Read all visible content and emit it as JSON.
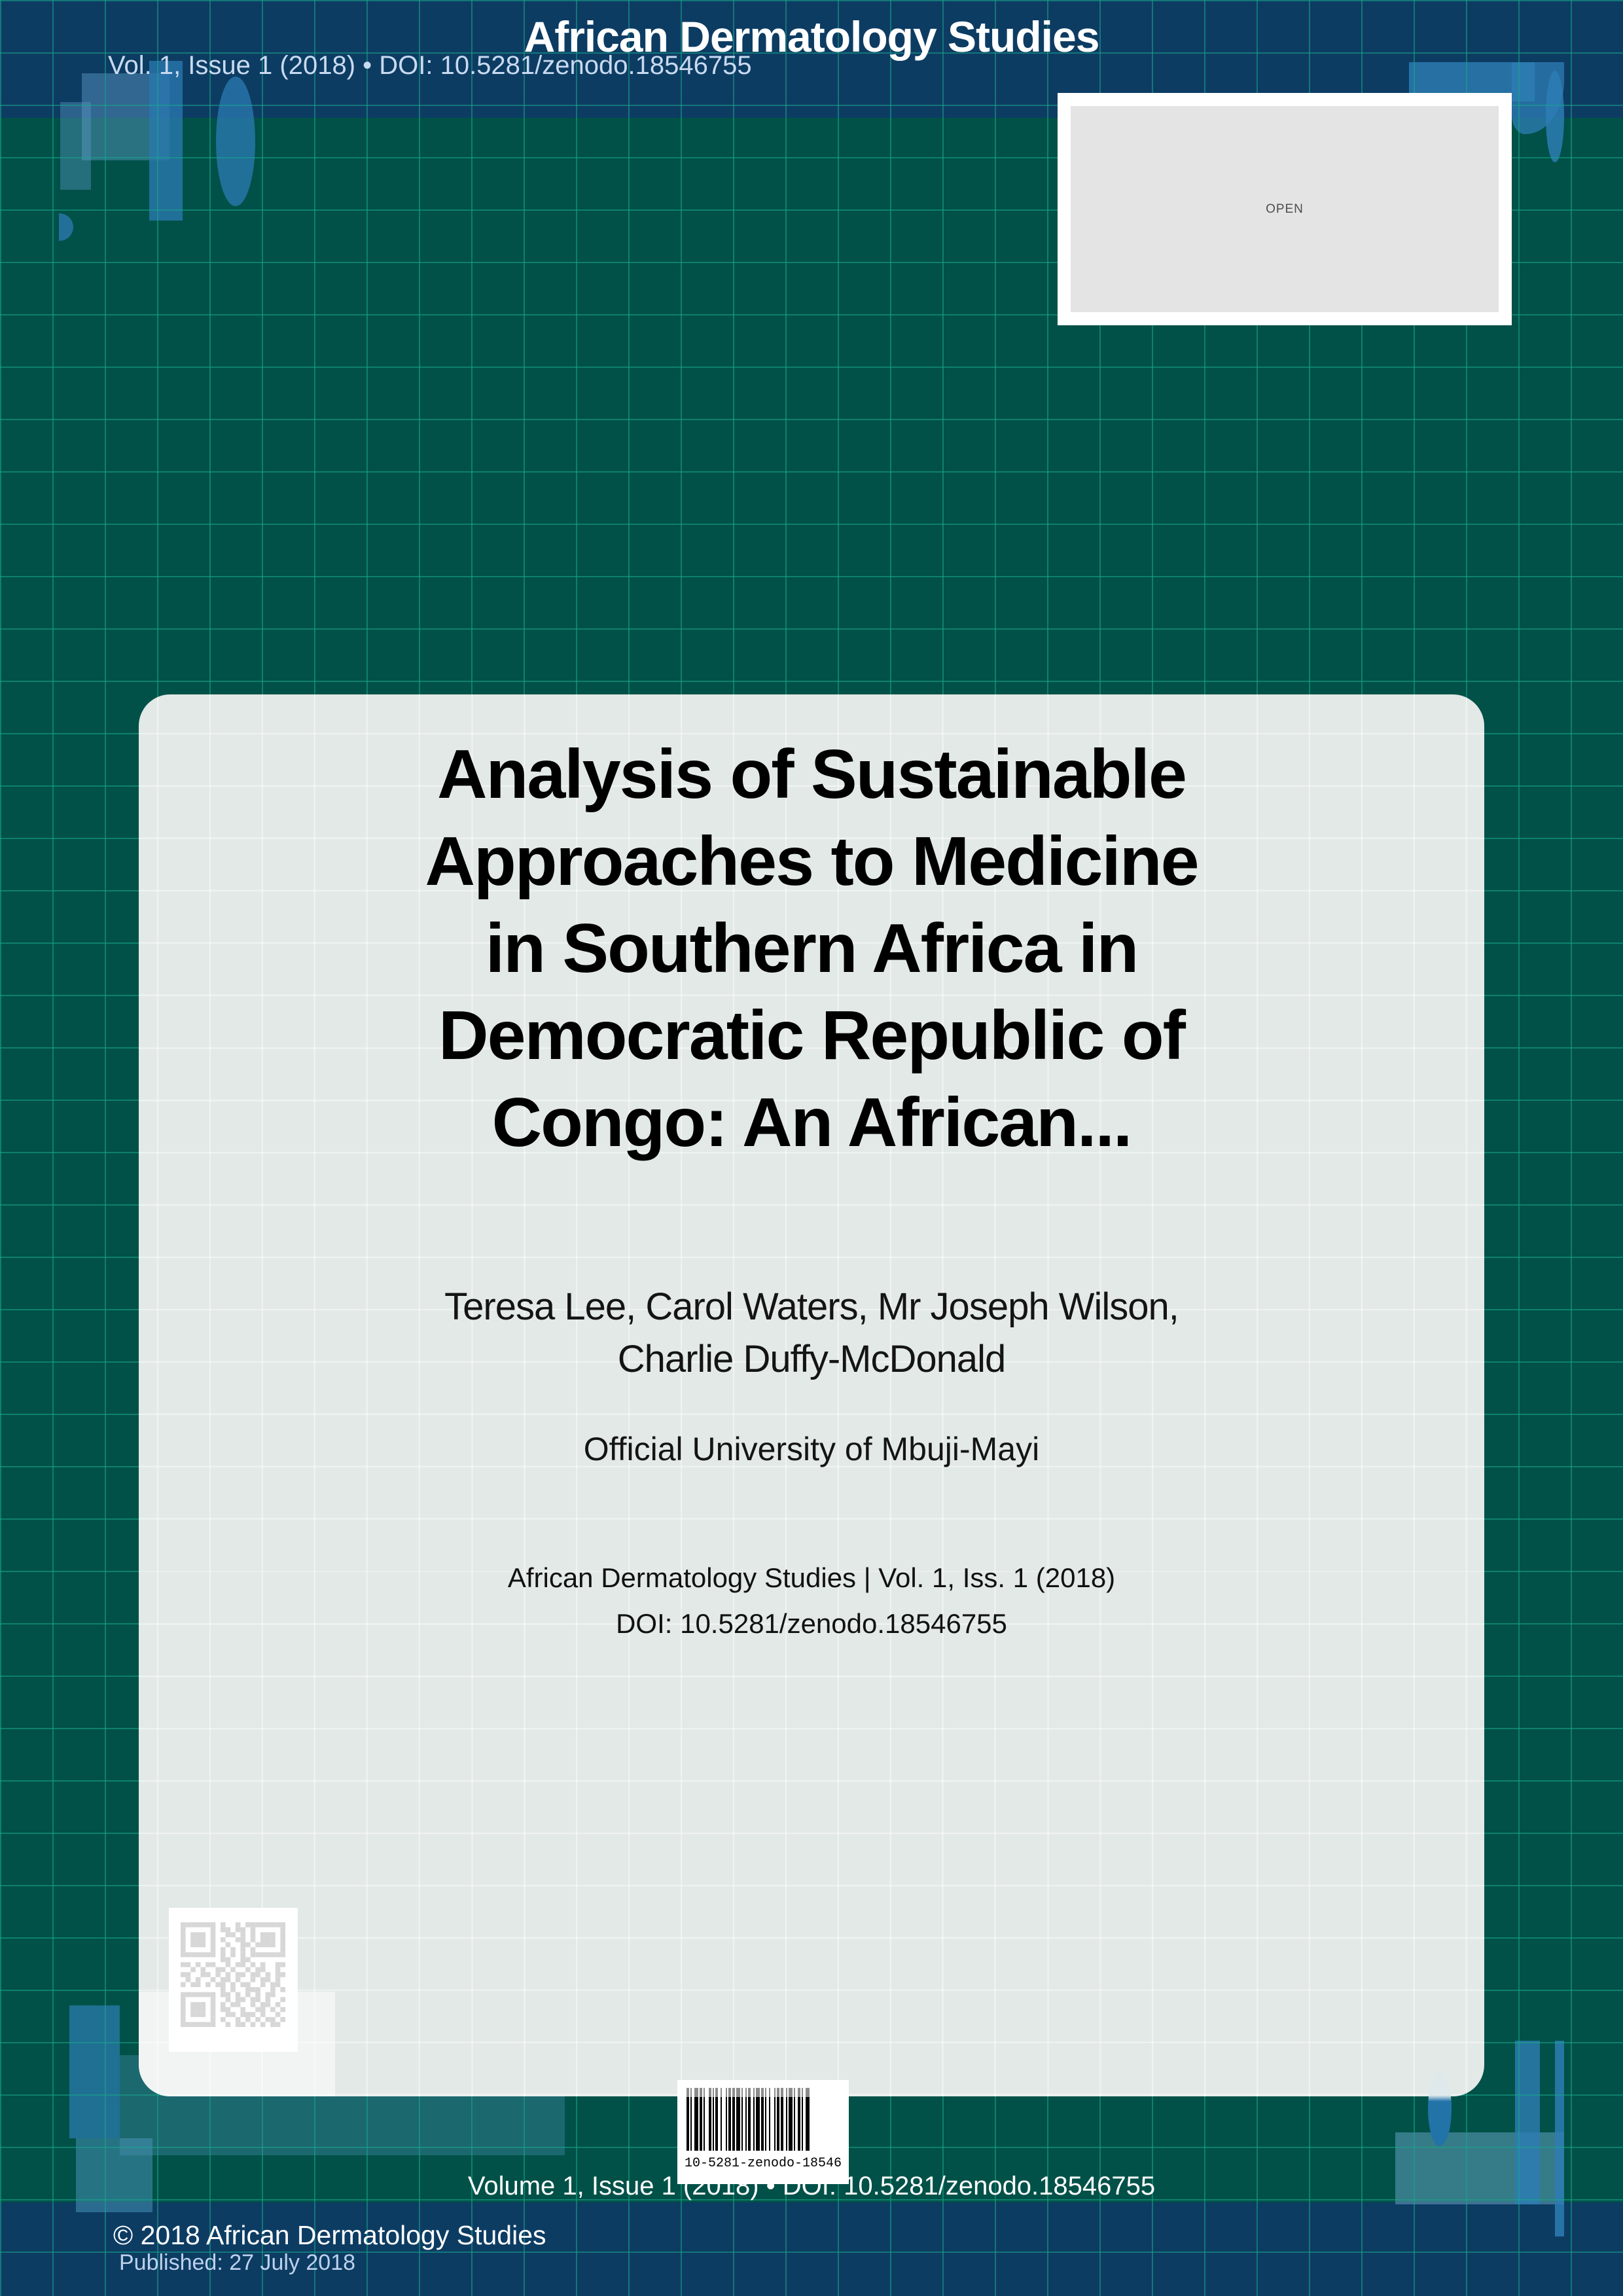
{
  "header": {
    "journal_title": "African Dermatology Studies",
    "issue_line": "Vol. 1, Issue 1 (2018) • DOI: 10.5281/zenodo.18546755"
  },
  "open_badge": {
    "label": "OPEN"
  },
  "article": {
    "title_lines": [
      "Analysis of Sustainable",
      "Approaches to Medicine",
      "in Southern Africa in",
      "Democratic Republic of",
      "Congo: An African..."
    ],
    "author_lines": [
      "Teresa Lee, Carol Waters, Mr Joseph Wilson,",
      "Charlie Duffy-McDonald"
    ],
    "affiliation": "Official University of Mbuji-Mayi",
    "journal_ref": "African Dermatology Studies | Vol. 1, Iss. 1 (2018)",
    "doi_line": "DOI: 10.5281/zenodo.18546755"
  },
  "barcode": {
    "value": "10-5281-zenodo-18546"
  },
  "bottom_strip": {
    "volume_line": "Volume 1, Issue 1 (2018) • DOI: 10.5281/zenodo.18546755"
  },
  "footer": {
    "copyright": "© 2018 African Dermatology Studies",
    "published": "Published: 27 July 2018"
  },
  "colors": {
    "header_navy": "#0d3c63",
    "background_green": "#015148",
    "grid_teal": "#18a68a",
    "card_gray": "#e2e9e6",
    "accent_blue": "#2a78ad"
  },
  "icons": {
    "qr": "qr-code",
    "barcode": "barcode"
  }
}
